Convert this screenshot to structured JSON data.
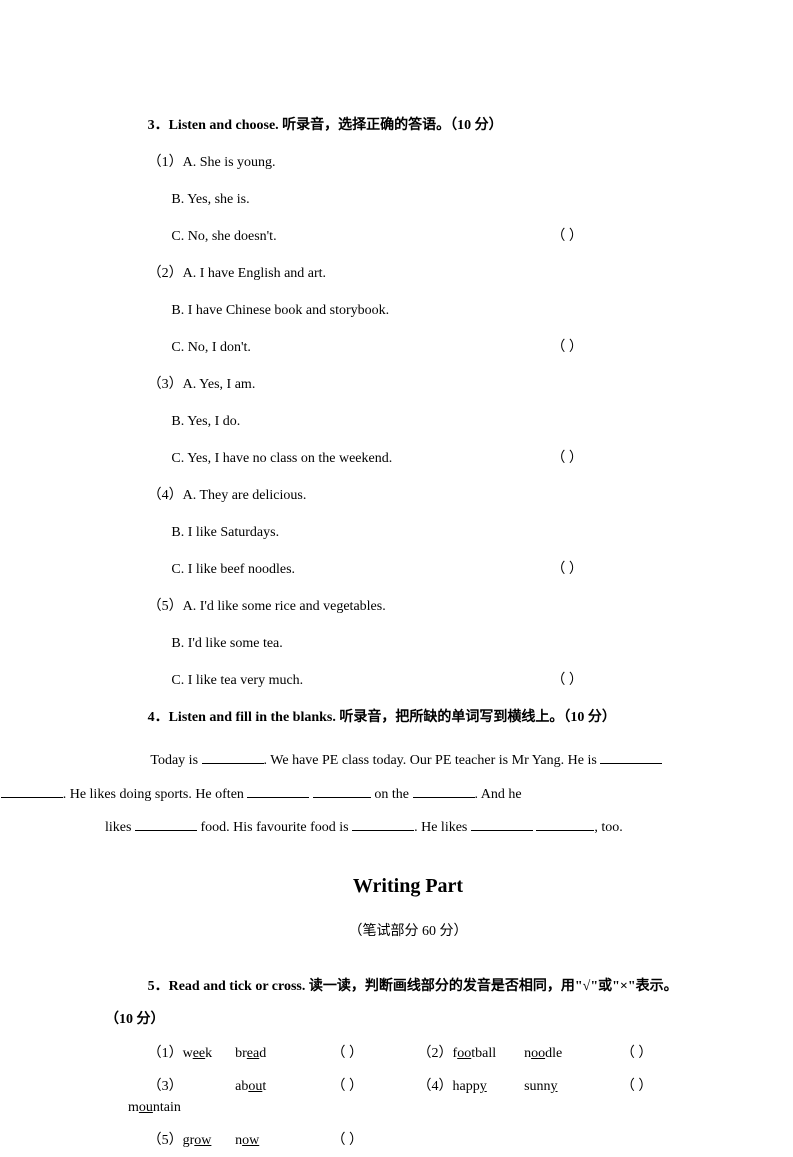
{
  "q3": {
    "header": "3．Listen and choose. 听录音，选择正确的答语。（10 分）",
    "items": [
      {
        "a": "（1）A. She is young.",
        "b": "B. Yes, she is.",
        "c": "C. No, she doesn't."
      },
      {
        "a": "（2）A. I have English and art.",
        "b": "B. I have Chinese book and storybook.",
        "c": "C. No, I don't."
      },
      {
        "a": "（3）A. Yes, I am.",
        "b": "B. Yes, I do.",
        "c": "C. Yes, I have no class on the weekend."
      },
      {
        "a": "（4）A. They are delicious.",
        "b": "B. I like Saturdays.",
        "c": "C. I like beef noodles."
      },
      {
        "a": "（5）A. I'd like some rice and vegetables.",
        "b": "B. I'd like some tea.",
        "c": "C. I like tea very much."
      }
    ],
    "paren": "（      ）"
  },
  "q4": {
    "header": "4．Listen and fill in the blanks. 听录音，把所缺的单词写到横线上。（10 分）",
    "t1": "Today is ",
    "t2": ". We have PE class today. Our PE teacher is Mr Yang. He is ",
    "t3": "and ",
    "t4": ". He likes doing sports. He often ",
    "t5": " on the ",
    "t6": ". And he",
    "t7": "likes ",
    "t8": " food. His favourite food is ",
    "t9": ". He likes ",
    "t10": ", too."
  },
  "writing": {
    "title": "Writing Part",
    "sub": "（笔试部分  60 分）"
  },
  "q5": {
    "header": "5．Read and tick or cross. 读一读，判断画线部分的发音是否相同，用\"√\"或\"×\"表示。",
    "header2": "（10 分）",
    "rows": [
      [
        {
          "num": "（1）",
          "w1p": "w",
          "w1u": "ee",
          "w1s": "k",
          "w2p": "br",
          "w2u": "ea",
          "w2s": "d"
        },
        {
          "num": "（2）",
          "w1p": "f",
          "w1u": "oo",
          "w1s": "tball",
          "w2p": "n",
          "w2u": "oo",
          "w2s": "dle"
        }
      ],
      [
        {
          "num": "（3）",
          "w1p": "m",
          "w1u": "ou",
          "w1s": "ntain",
          "w2p": "ab",
          "w2u": "ou",
          "w2s": "t"
        },
        {
          "num": "（4）",
          "w1p": "happ",
          "w1u": "y",
          "w1s": "",
          "w2p": "sunn",
          "w2u": "y",
          "w2s": ""
        }
      ],
      [
        {
          "num": "（5）",
          "w1p": "gr",
          "w1u": "ow",
          "w1s": "",
          "w2p": "n",
          "w2u": "ow",
          "w2s": ""
        },
        null
      ]
    ],
    "paren": "（      ）"
  }
}
